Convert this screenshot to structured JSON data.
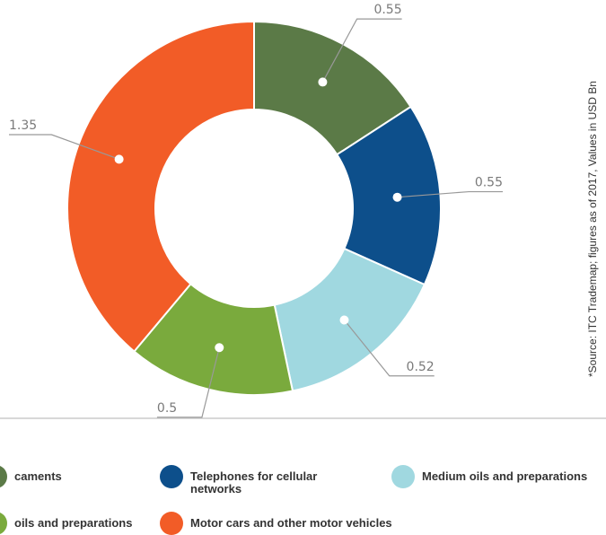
{
  "chart_data": {
    "type": "donut",
    "note": "*Source: ITC Trademap; figures as of 2017, Values in USD Bn",
    "series": [
      {
        "name": "caments",
        "color": "#5b7a47",
        "values": [
          0.55
        ]
      },
      {
        "name": "Telephones for cellular networks",
        "color": "#0d4f8b",
        "values": [
          0.55
        ]
      },
      {
        "name": "Medium oils and preparations",
        "color": "#a0d8e0",
        "values": [
          0.52
        ]
      },
      {
        "name": "oils and preparations",
        "color": "#7aaa3d",
        "values": [
          0.5
        ]
      },
      {
        "name": "Motor cars and other motor vehicles",
        "color": "#f25c27",
        "values": [
          1.35
        ]
      }
    ]
  }
}
